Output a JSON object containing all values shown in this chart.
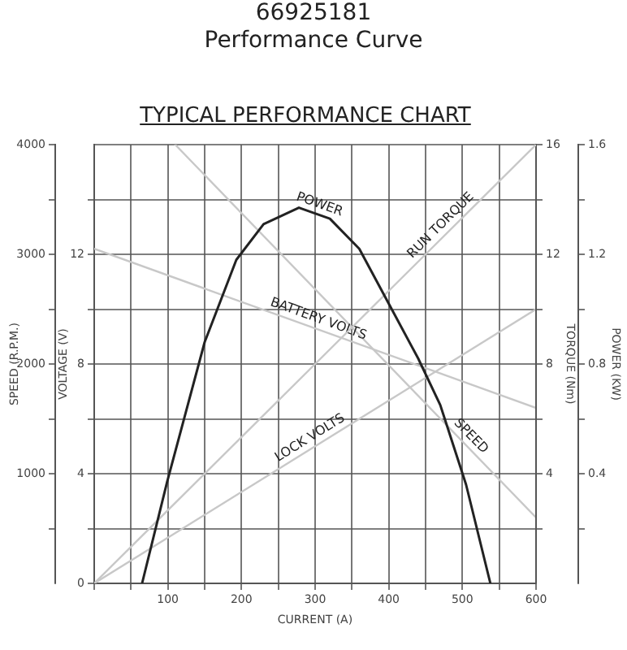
{
  "chart_data": [
    {
      "type": "line",
      "title": "66925181",
      "subtitle": "Performance Curve",
      "annotations": [
        "TYPICAL PERFORMANCE CHART"
      ],
      "xlabel": "CURRENT (A)",
      "ylabel": "SPEED (R.P.M.)",
      "y2label": "VOLTAGE (V)",
      "xlim": [
        0,
        600
      ],
      "xticks": [
        {
          "value": 0,
          "label": null
        },
        {
          "value": 50,
          "label": null
        },
        100,
        {
          "value": 150,
          "label": null
        },
        200,
        {
          "value": 250,
          "label": null
        },
        300,
        {
          "value": 350,
          "label": null
        },
        400,
        {
          "value": 450,
          "label": null
        },
        500,
        {
          "value": 550,
          "label": null
        },
        600
      ],
      "ylim": [
        0,
        4000
      ],
      "yticks": [
        {
          "value": 500,
          "label": null
        },
        1000,
        {
          "value": 1500,
          "label": null
        },
        2000,
        {
          "value": 2500,
          "label": null
        },
        3000,
        {
          "value": 3500,
          "label": null
        },
        4000
      ],
      "y2lim": [
        0,
        16
      ],
      "y2ticks": [
        0,
        {
          "value": 2,
          "label": null
        },
        4,
        {
          "value": 6,
          "label": null
        },
        8,
        {
          "value": 10,
          "label": null
        },
        12,
        {
          "value": 14,
          "label": null
        }
      ],
      "grid": true,
      "legend": false,
      "marker": "none",
      "line_style": "solid",
      "series": [
        {
          "name": "BATTERY VOLTS",
          "color": "#c8c8c8",
          "axis": "y2",
          "x": [
            0,
            600
          ],
          "values": [
            12.2,
            6.4
          ]
        },
        {
          "name": "LOCK VOLTS",
          "color": "#c8c8c8",
          "axis": "y2",
          "x": [
            0,
            600
          ],
          "values": [
            0,
            10
          ]
        },
        {
          "name": "SPEED",
          "color": "#c8c8c8",
          "x": [
            110,
            600
          ],
          "values": [
            4000,
            600
          ]
        }
      ]
    },
    {
      "type": "line",
      "ylabel": "TORQUE (Nm)",
      "y2label": "POWER (KW)",
      "xlim": [
        0,
        600
      ],
      "tick_labels": "y",
      "ylim": [
        0,
        16
      ],
      "yticks": [
        {
          "value": 2,
          "label": null
        },
        4,
        {
          "value": 6,
          "label": null
        },
        8,
        {
          "value": 10,
          "label": null
        },
        12,
        {
          "value": 14,
          "label": null
        },
        16
      ],
      "y2lim": [
        0,
        1.6
      ],
      "y2ticks": [
        {
          "value": 0.2,
          "label": null
        },
        0.4,
        {
          "value": 0.6,
          "label": null
        },
        0.8,
        {
          "value": 1.0,
          "label": null
        },
        1.2,
        {
          "value": 1.4,
          "label": null
        },
        1.6
      ],
      "legend": false,
      "marker": "none",
      "line_style": "solid",
      "series": [
        {
          "name": "POWER",
          "color": "#222222",
          "axis": "y2",
          "x": [
            65,
            99,
            150,
            193,
            230,
            278,
            320,
            360,
            400,
            440,
            470,
            505,
            538
          ],
          "values": [
            0,
            0.37,
            0.88,
            1.18,
            1.31,
            1.37,
            1.33,
            1.22,
            1.02,
            0.82,
            0.65,
            0.36,
            0
          ]
        },
        {
          "name": "RUN TORQUE",
          "color": "#c8c8c8",
          "x": [
            0,
            600
          ],
          "values": [
            0,
            16
          ]
        }
      ]
    }
  ]
}
